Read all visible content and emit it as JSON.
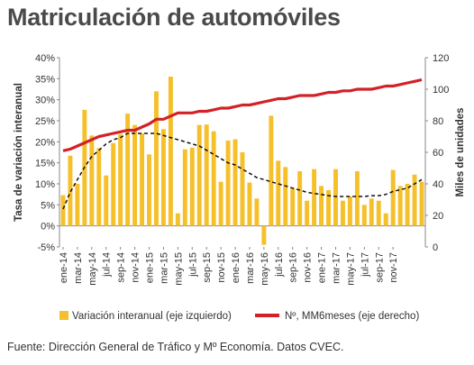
{
  "title": "Matriculación de automóviles",
  "source": "Fuente: Dirección General de Tráfico y Mº Economía. Datos CVEC.",
  "colors": {
    "bars": "#f5c02a",
    "line": "#d42027",
    "trend": "#111111",
    "axis": "#888888"
  },
  "chart_data": {
    "type": "bar+line",
    "ylabel_left": "Tasa de variación interanual",
    "ylabel_right": "Miles de unidades",
    "ylim_left": [
      -5,
      40
    ],
    "ylim_right": [
      0,
      120
    ],
    "left_ticks": [
      "-5%",
      "0%",
      "5%",
      "10%",
      "15%",
      "20%",
      "25%",
      "30%",
      "35%",
      "40%"
    ],
    "right_ticks": [
      "0",
      "20",
      "40",
      "60",
      "80",
      "100",
      "120"
    ],
    "x_tick_labels": [
      "ene-14",
      "mar-14",
      "may-14",
      "jul-14",
      "sep-14",
      "nov-14",
      "ene-15",
      "mar-15",
      "may-15",
      "jul-15",
      "sep-15",
      "nov-15",
      "ene-16",
      "mar-16",
      "may-16",
      "jul-16",
      "sep-16",
      "nov-16",
      "ene-17",
      "mar-17",
      "may-17",
      "jul-17",
      "sep-17",
      "nov-17"
    ],
    "grid": false,
    "legend_position": "bottom",
    "series": [
      {
        "name": "Variación interanual (eje izquierdo)",
        "type": "bar",
        "axis": "left",
        "values": [
          7.3,
          16.7,
          10.0,
          27.6,
          21.5,
          18.5,
          12.0,
          19.7,
          21.8,
          26.7,
          24.0,
          22.0,
          17.0,
          32.0,
          23.0,
          35.5,
          3.0,
          18.2,
          18.6,
          24.0,
          24.1,
          22.5,
          10.5,
          20.3,
          20.6,
          17.5,
          10.3,
          6.5,
          -4.5,
          26.2,
          15.5,
          14.0,
          9.0,
          13.0,
          6.0,
          13.5,
          9.5,
          8.5,
          13.5,
          6.0,
          7.0,
          13.0,
          5.0,
          6.5,
          6.0,
          3.0,
          13.3,
          9.5,
          10.0,
          12.2,
          10.5
        ]
      },
      {
        "name": "Nº, MM6meses (eje derecho)",
        "type": "line",
        "axis": "right",
        "values": [
          61,
          62,
          64,
          66,
          68,
          70,
          71,
          72,
          73,
          74,
          74,
          76,
          78,
          81,
          81,
          83,
          85,
          85,
          85,
          86,
          86,
          87,
          88,
          88,
          89,
          90,
          90,
          91,
          92,
          93,
          94,
          94,
          95,
          96,
          96,
          96,
          97,
          98,
          98,
          99,
          99,
          100,
          100,
          100,
          101,
          102,
          102,
          103,
          104,
          105,
          106
        ]
      },
      {
        "type": "line",
        "style": "dashed",
        "axis": "left",
        "values": [
          4,
          8,
          11,
          14,
          16.5,
          18,
          19.5,
          20.5,
          21,
          22,
          22,
          22,
          22,
          22,
          21.5,
          21,
          20.5,
          20,
          19.5,
          19,
          18,
          17,
          16,
          15,
          14.5,
          13.5,
          12.5,
          11.5,
          11,
          10.5,
          10,
          9.5,
          9,
          8.5,
          8,
          7.7,
          7.5,
          7.2,
          7,
          7,
          7,
          7,
          7,
          7.2,
          7.2,
          7.5,
          8.2,
          8.6,
          9,
          10,
          11
        ]
      }
    ]
  }
}
